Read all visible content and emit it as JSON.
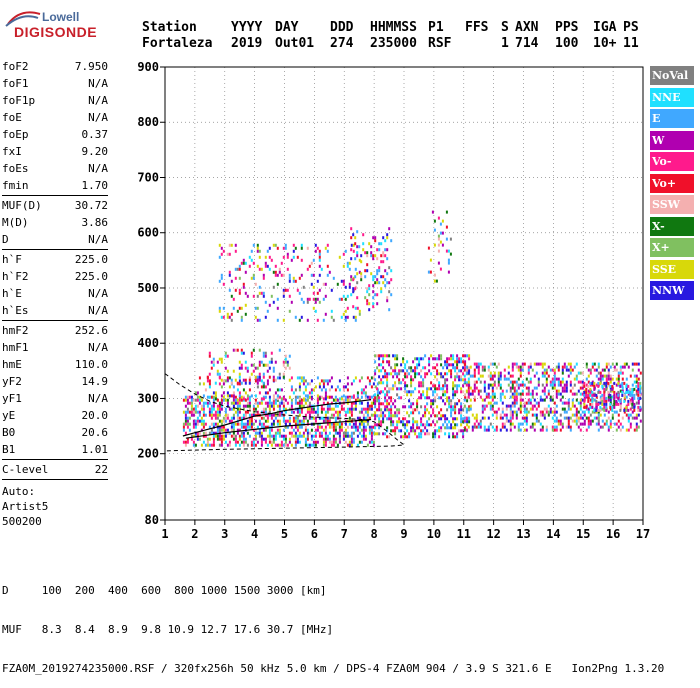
{
  "logo": {
    "line1": "Lowell",
    "line2": "DIGISONDE"
  },
  "header": {
    "labels": [
      "Station",
      "YYYY",
      "DAY",
      "DDD",
      "HHMMSS",
      "P1",
      "FFS",
      "S",
      "AXN",
      "PPS",
      "IGA",
      "PS"
    ],
    "values": [
      "Fortaleza",
      "2019",
      "Out01",
      "274",
      "235000",
      "RSF",
      "",
      "1",
      "714",
      "100",
      "10+",
      "11"
    ]
  },
  "params": [
    {
      "name": "foF2",
      "value": "7.950"
    },
    {
      "name": "foF1",
      "value": "N/A"
    },
    {
      "name": "foF1p",
      "value": "N/A"
    },
    {
      "name": "foE",
      "value": "N/A"
    },
    {
      "name": "foEp",
      "value": "0.37"
    },
    {
      "name": "fxI",
      "value": "9.20"
    },
    {
      "name": "foEs",
      "value": "N/A"
    },
    {
      "name": "fmin",
      "value": "1.70"
    },
    {
      "sep": true
    },
    {
      "name": "MUF(D)",
      "value": "30.72"
    },
    {
      "name": "M(D)",
      "value": "3.86"
    },
    {
      "name": "D",
      "value": "N/A"
    },
    {
      "sep": true
    },
    {
      "name": "h`F",
      "value": "225.0"
    },
    {
      "name": "h`F2",
      "value": "225.0"
    },
    {
      "name": "h`E",
      "value": "N/A"
    },
    {
      "name": "h`Es",
      "value": "N/A"
    },
    {
      "sep": true
    },
    {
      "name": "hmF2",
      "value": "252.6"
    },
    {
      "name": "hmF1",
      "value": "N/A"
    },
    {
      "name": "hmE",
      "value": "110.0"
    },
    {
      "name": "yF2",
      "value": "14.9"
    },
    {
      "name": "yF1",
      "value": "N/A"
    },
    {
      "name": "yE",
      "value": "20.0"
    },
    {
      "name": "B0",
      "value": "20.6"
    },
    {
      "name": "B1",
      "value": "1.01"
    },
    {
      "sep": true
    },
    {
      "name": "C-level",
      "value": "22"
    },
    {
      "sep": true
    }
  ],
  "auto": [
    "Auto:",
    "Artist5",
    "500200"
  ],
  "footer": {
    "line1": "D     100  200  400  600  800 1000 1500 3000 [km]",
    "line2": "MUF   8.3  8.4  8.9  9.8 10.9 12.7 17.6 30.7 [MHz]",
    "line3": "FZA0M_2019274235000.RSF / 320fx256h 50 kHz 5.0 km / DPS-4 FZA0M 904 / 3.9 S 321.6 E   Ion2Png 1.3.20"
  },
  "legend": [
    {
      "label": "NoVal",
      "color": "#808080"
    },
    {
      "label": "NNE",
      "color": "#1fe0ff"
    },
    {
      "label": "E",
      "color": "#40a8ff"
    },
    {
      "label": "W",
      "color": "#b000b0"
    },
    {
      "label": "Vo-",
      "color": "#ff1a8c"
    },
    {
      "label": "Vo+",
      "color": "#f0102a"
    },
    {
      "label": "SSW",
      "color": "#f4b0b0"
    },
    {
      "label": "X-",
      "color": "#107810"
    },
    {
      "label": "X+",
      "color": "#80c060"
    },
    {
      "label": "SSE",
      "color": "#d8d80a"
    },
    {
      "label": "NNW",
      "color": "#2818e0"
    }
  ],
  "chart_data": {
    "type": "scatter",
    "title": "",
    "xlabel": "",
    "ylabel": "",
    "xlim": [
      1,
      17
    ],
    "ylim": [
      80,
      900
    ],
    "x_ticks": [
      1,
      2,
      3,
      4,
      5,
      6,
      7,
      8,
      9,
      10,
      11,
      12,
      13,
      14,
      15,
      16,
      17
    ],
    "y_ticks": [
      80,
      200,
      300,
      400,
      500,
      600,
      700,
      800,
      900
    ],
    "grid": true,
    "traces": [
      {
        "name": "F trace",
        "points": [
          [
            1.6,
            232
          ],
          [
            2,
            238
          ],
          [
            2.5,
            245
          ],
          [
            3,
            252
          ],
          [
            3.5,
            260
          ],
          [
            4,
            268
          ],
          [
            4.5,
            272
          ],
          [
            5,
            278
          ],
          [
            5.5,
            282
          ],
          [
            6,
            286
          ],
          [
            6.5,
            290
          ],
          [
            7,
            292
          ],
          [
            7.5,
            295
          ],
          [
            7.9,
            298
          ]
        ]
      },
      {
        "name": "profile",
        "points": [
          [
            1.7,
            228
          ],
          [
            3,
            238
          ],
          [
            4,
            244
          ],
          [
            5,
            250
          ],
          [
            6,
            254
          ],
          [
            7,
            258
          ],
          [
            7.9,
            262
          ]
        ]
      }
    ],
    "dashed_curve": {
      "points": [
        [
          1,
          345
        ],
        [
          1.5,
          325
        ],
        [
          2,
          308
        ],
        [
          2.5,
          295
        ],
        [
          3,
          286
        ],
        [
          4,
          276
        ],
        [
          5,
          270
        ],
        [
          6,
          266
        ],
        [
          7,
          264
        ],
        [
          7.6,
          262
        ],
        [
          8,
          258
        ],
        [
          8.4,
          242
        ],
        [
          8.8,
          224
        ],
        [
          9,
          216
        ],
        [
          8.6,
          214
        ],
        [
          7,
          212
        ],
        [
          5,
          210
        ],
        [
          3,
          208
        ],
        [
          1,
          205
        ]
      ]
    },
    "echo_clusters": [
      {
        "x": [
          1.6,
          8.0
        ],
        "y": [
          215,
          305
        ],
        "density": 0.55
      },
      {
        "x": [
          2.0,
          8.2
        ],
        "y": [
          300,
          340
        ],
        "density": 0.25
      },
      {
        "x": [
          2.4,
          5.2
        ],
        "y": [
          330,
          390
        ],
        "density": 0.2
      },
      {
        "x": [
          2.8,
          7.5
        ],
        "y": [
          440,
          580
        ],
        "density": 0.12
      },
      {
        "x": [
          7.2,
          8.6
        ],
        "y": [
          460,
          610
        ],
        "density": 0.18
      },
      {
        "x": [
          8.0,
          11.2
        ],
        "y": [
          230,
          380
        ],
        "density": 0.45
      },
      {
        "x": [
          9.8,
          10.6
        ],
        "y": [
          510,
          640
        ],
        "density": 0.1
      },
      {
        "x": [
          11.0,
          16.9
        ],
        "y": [
          245,
          365
        ],
        "density": 0.4
      },
      {
        "x": [
          15,
          16.9
        ],
        "y": [
          280,
          330
        ],
        "density": 0.5
      }
    ]
  }
}
